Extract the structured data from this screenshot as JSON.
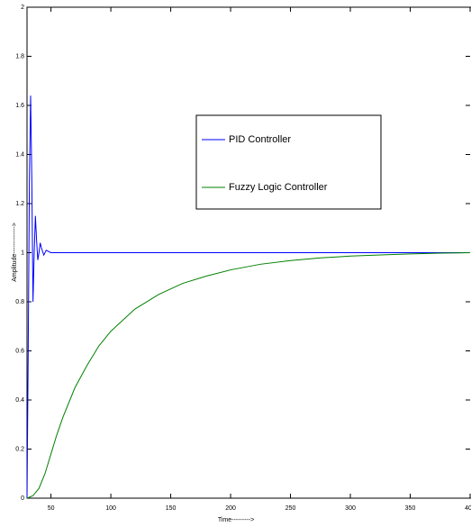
{
  "chart_data": {
    "type": "line",
    "xlabel": "Time--------->",
    "ylabel": "Amplitude------------->",
    "xlim": [
      30,
      400
    ],
    "xticks": [
      50,
      100,
      150,
      200,
      250,
      300,
      350,
      400
    ],
    "ylim": [
      0,
      2
    ],
    "yticks": [
      0,
      0.2,
      0.4,
      0.6,
      0.8,
      1,
      1.2,
      1.4,
      1.6,
      1.8,
      2
    ],
    "grid": false,
    "legend": "center",
    "series": [
      {
        "name": "PID Controller",
        "color": "#0000ff",
        "x": [
          30,
          31,
          32,
          33,
          34,
          35,
          36,
          37,
          38,
          39,
          40,
          41,
          42,
          44,
          46,
          50,
          60,
          100,
          200,
          300,
          400
        ],
        "values": [
          0,
          0.6,
          1.3,
          1.64,
          1.3,
          0.8,
          1.0,
          1.15,
          1.05,
          0.97,
          1.0,
          1.04,
          1.02,
          0.99,
          1.01,
          1.0,
          1.0,
          1.0,
          1.0,
          1.0,
          1.0
        ]
      },
      {
        "name": "Fuzzy Logic Controller",
        "color": "#008000",
        "x": [
          30,
          35,
          40,
          45,
          50,
          55,
          60,
          70,
          80,
          90,
          100,
          120,
          140,
          160,
          180,
          200,
          225,
          250,
          275,
          300,
          325,
          350,
          375,
          400
        ],
        "values": [
          0,
          0.01,
          0.04,
          0.1,
          0.18,
          0.26,
          0.33,
          0.45,
          0.54,
          0.62,
          0.68,
          0.77,
          0.83,
          0.875,
          0.905,
          0.93,
          0.953,
          0.968,
          0.979,
          0.986,
          0.991,
          0.995,
          0.998,
          1.0
        ]
      }
    ]
  }
}
